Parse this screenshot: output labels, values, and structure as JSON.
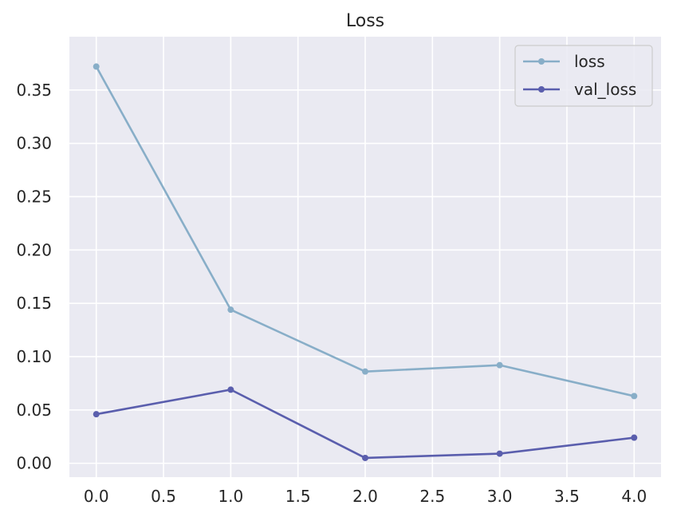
{
  "chart_data": {
    "type": "line",
    "title": "Loss",
    "xlabel": "",
    "ylabel": "",
    "x": [
      0,
      1,
      2,
      3,
      4
    ],
    "xlim": [
      -0.2,
      4.2
    ],
    "ylim": [
      -0.013,
      0.4
    ],
    "xticks": [
      0.0,
      0.5,
      1.0,
      1.5,
      2.0,
      2.5,
      3.0,
      3.5,
      4.0
    ],
    "xtick_labels": [
      "0.0",
      "0.5",
      "1.0",
      "1.5",
      "2.0",
      "2.5",
      "3.0",
      "3.5",
      "4.0"
    ],
    "yticks": [
      0.0,
      0.05,
      0.1,
      0.15,
      0.2,
      0.25,
      0.3,
      0.35
    ],
    "ytick_labels": [
      "0.00",
      "0.05",
      "0.10",
      "0.15",
      "0.20",
      "0.25",
      "0.30",
      "0.35"
    ],
    "grid": true,
    "legend_position": "top-right",
    "series": [
      {
        "name": "loss",
        "color": "#88aec8",
        "values": [
          0.372,
          0.144,
          0.086,
          0.092,
          0.063
        ]
      },
      {
        "name": "val_loss",
        "color": "#5a5ead",
        "values": [
          0.046,
          0.069,
          0.005,
          0.009,
          0.024
        ]
      }
    ],
    "style": {
      "plot_background": "#eaeaf2",
      "grid_color": "#ffffff"
    }
  }
}
